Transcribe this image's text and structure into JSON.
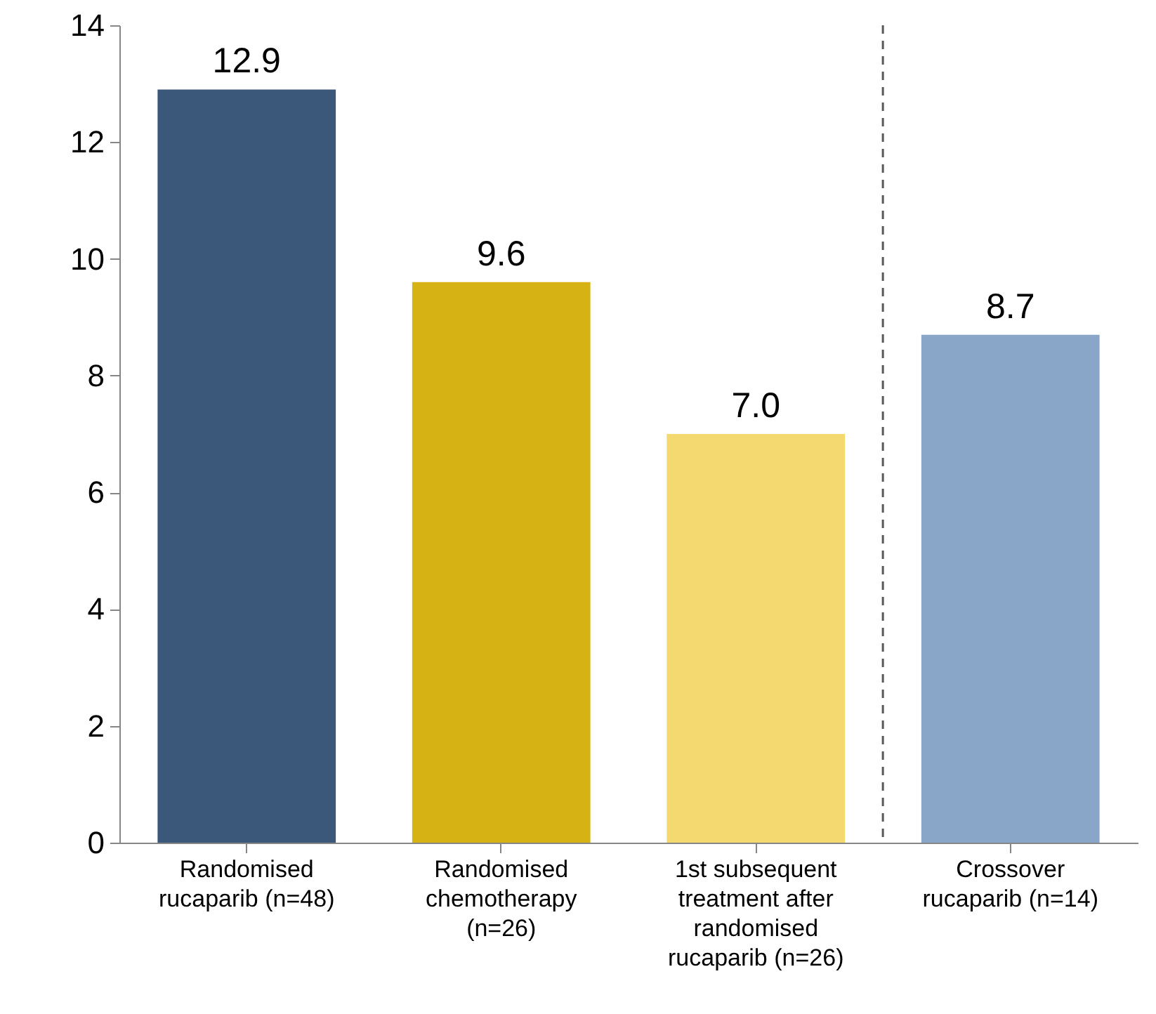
{
  "chart_data": {
    "type": "bar",
    "categories": [
      "Randomised rucaparib (n=48)",
      "Randomised chemotherapy (n=26)",
      "1st subsequent treatment after randomised rucaparib (n=26)",
      "Crossover rucaparib (n=14)"
    ],
    "values": [
      12.9,
      9.6,
      7.0,
      8.7
    ],
    "value_labels": [
      "12.9",
      "9.6",
      "7.0",
      "8.7"
    ],
    "colors": [
      "#3b5779",
      "#d6b214",
      "#f3d96f",
      "#89a6c9"
    ],
    "ylim": [
      0,
      14
    ],
    "yticks": [
      0,
      2,
      4,
      6,
      8,
      10,
      12,
      14
    ],
    "grid": false
  }
}
